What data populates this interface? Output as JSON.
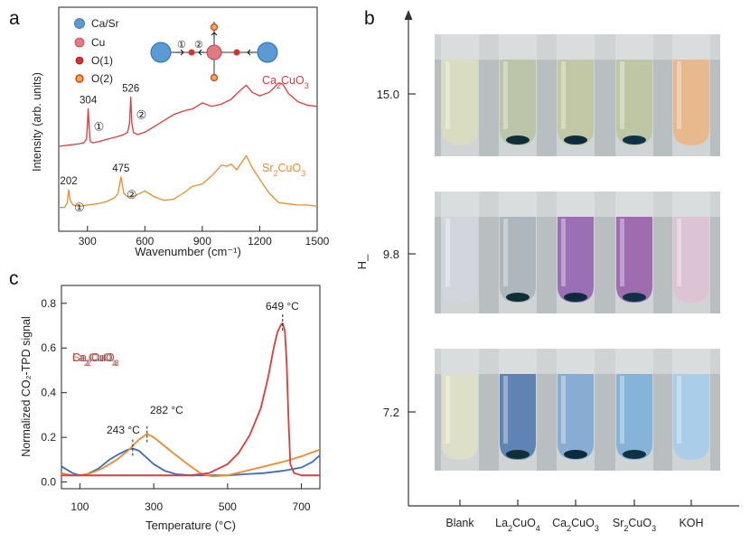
{
  "panels": {
    "a": {
      "letter": "a"
    },
    "b": {
      "letter": "b"
    },
    "c": {
      "letter": "c"
    }
  },
  "chart_data": [
    {
      "panel": "a",
      "type": "line",
      "xlabel": "Wavenumber (cm⁻¹)",
      "ylabel": "Intensity (arb. units)",
      "xlim": [
        150,
        1500
      ],
      "xticks": [
        "300",
        "600",
        "900",
        "1200",
        "1500"
      ],
      "legend": [
        {
          "label": "Ca/Sr",
          "color": "#5a9bd5"
        },
        {
          "label": "Cu",
          "color": "#e27a82"
        },
        {
          "label": "O(1)",
          "color": "#d9302c"
        },
        {
          "label": "O(2)",
          "color": "#f1b03a"
        }
      ],
      "inset_labels": [
        "①",
        "②"
      ],
      "series": [
        {
          "name": "Ca₂CuO₃",
          "color": "#e23a3a",
          "peaks": [
            {
              "x": 304,
              "label": "304",
              "mode": "①"
            },
            {
              "x": 526,
              "label": "526",
              "mode": "②"
            }
          ],
          "x": [
            150,
            200,
            250,
            280,
            295,
            300,
            304,
            308,
            315,
            330,
            360,
            400,
            450,
            490,
            510,
            520,
            526,
            532,
            540,
            560,
            600,
            650,
            700,
            750,
            800,
            850,
            900,
            950,
            1000,
            1050,
            1100,
            1130,
            1160,
            1200,
            1250,
            1300,
            1320,
            1350,
            1400,
            1450,
            1500
          ],
          "y": [
            0.1,
            0.11,
            0.12,
            0.13,
            0.16,
            0.3,
            0.42,
            0.28,
            0.14,
            0.13,
            0.14,
            0.16,
            0.18,
            0.2,
            0.22,
            0.3,
            0.52,
            0.3,
            0.22,
            0.2,
            0.22,
            0.27,
            0.32,
            0.37,
            0.4,
            0.42,
            0.47,
            0.44,
            0.46,
            0.5,
            0.58,
            0.62,
            0.56,
            0.53,
            0.56,
            0.64,
            0.63,
            0.55,
            0.48,
            0.45,
            0.44
          ]
        },
        {
          "name": "Sr₂CuO₃",
          "color": "#f08a2a",
          "peaks": [
            {
              "x": 202,
              "label": "202",
              "mode": "①"
            },
            {
              "x": 475,
              "label": "475",
              "mode": "②"
            }
          ],
          "x": [
            150,
            180,
            195,
            202,
            210,
            225,
            260,
            300,
            350,
            400,
            440,
            460,
            475,
            490,
            510,
            550,
            600,
            650,
            700,
            750,
            800,
            850,
            900,
            950,
            1000,
            1030,
            1050,
            1080,
            1100,
            1130,
            1160,
            1200,
            1250,
            1300,
            1350,
            1400,
            1450,
            1500
          ],
          "y": [
            -0.42,
            -0.42,
            -0.38,
            -0.27,
            -0.36,
            -0.4,
            -0.41,
            -0.4,
            -0.39,
            -0.37,
            -0.34,
            -0.3,
            -0.16,
            -0.3,
            -0.33,
            -0.32,
            -0.28,
            -0.33,
            -0.36,
            -0.35,
            -0.3,
            -0.24,
            -0.22,
            -0.15,
            -0.06,
            -0.07,
            -0.05,
            -0.1,
            -0.05,
            0.02,
            -0.08,
            -0.18,
            -0.3,
            -0.38,
            -0.39,
            -0.4,
            -0.4,
            -0.41
          ]
        }
      ]
    },
    {
      "panel": "c",
      "type": "line",
      "xlabel": "Temperature (°C)",
      "ylabel": "Normalized CO₂-TPD signal",
      "xlim": [
        50,
        750
      ],
      "ylim": [
        -0.03,
        0.88
      ],
      "xticks": [
        100,
        300,
        500,
        700
      ],
      "yticks": [
        "0.0",
        "0.2",
        "0.4",
        "0.6",
        "0.8"
      ],
      "ytick_values": [
        0.0,
        0.2,
        0.4,
        0.6,
        0.8
      ],
      "peak_labels": [
        {
          "x": 243,
          "y": 0.15,
          "label": "243 °C"
        },
        {
          "x": 282,
          "y": 0.21,
          "label": "282 °C"
        },
        {
          "x": 649,
          "y": 0.71,
          "label": "649 °C"
        }
      ],
      "series": [
        {
          "name": "La₂CuO₄",
          "color": "#3d6cc4",
          "x": [
            50,
            80,
            100,
            120,
            150,
            180,
            200,
            230,
            243,
            260,
            280,
            300,
            330,
            360,
            400,
            450,
            500,
            550,
            600,
            650,
            700,
            730,
            750
          ],
          "y": [
            0.07,
            0.04,
            0.03,
            0.035,
            0.06,
            0.1,
            0.12,
            0.145,
            0.15,
            0.14,
            0.11,
            0.08,
            0.05,
            0.035,
            0.03,
            0.03,
            0.03,
            0.035,
            0.04,
            0.05,
            0.065,
            0.09,
            0.12
          ]
        },
        {
          "name": "Sr₂CuO₃",
          "color": "#f08a2a",
          "x": [
            50,
            80,
            100,
            130,
            160,
            200,
            230,
            260,
            282,
            300,
            330,
            360,
            400,
            430,
            460,
            500,
            550,
            600,
            650,
            700,
            750
          ],
          "y": [
            0.04,
            0.03,
            0.03,
            0.04,
            0.06,
            0.1,
            0.14,
            0.19,
            0.215,
            0.2,
            0.16,
            0.12,
            0.07,
            0.035,
            0.025,
            0.03,
            0.05,
            0.07,
            0.09,
            0.115,
            0.145
          ]
        },
        {
          "name": "Ca₂CuO₃",
          "color": "#e23a3a",
          "x": [
            50,
            100,
            200,
            300,
            400,
            450,
            500,
            530,
            560,
            590,
            610,
            625,
            635,
            645,
            649,
            655,
            660,
            665,
            670,
            680,
            700,
            750
          ],
          "y": [
            0.03,
            0.03,
            0.03,
            0.03,
            0.03,
            0.04,
            0.08,
            0.13,
            0.21,
            0.33,
            0.47,
            0.6,
            0.67,
            0.705,
            0.71,
            0.68,
            0.54,
            0.28,
            0.08,
            0.04,
            0.03,
            0.03
          ]
        }
      ]
    },
    {
      "panel": "b",
      "type": "table",
      "ylabel": "H_",
      "rows": [
        "15.0",
        "9.8",
        "7.2"
      ],
      "columns": [
        "Blank",
        "La₂CuO₄",
        "Ca₂CuO₃",
        "Sr₂CuO₃",
        "KOH"
      ],
      "solution_colors": [
        [
          "#d9dcc0",
          "#bcc4a9",
          "#c2c8a5",
          "#bfc6a4",
          "#e9b98e"
        ],
        [
          "#d2d6dc",
          "#aeb7bd",
          "#9a6fb4",
          "#a06cb0",
          "#ddc4d4"
        ],
        [
          "#dedfc8",
          "#5f84b4",
          "#87aed2",
          "#86b3d8",
          "#aacdea"
        ]
      ],
      "pellet_colors": [
        "",
        "#0f2f36",
        "#0c2c3e",
        "#0e3346",
        ""
      ]
    }
  ]
}
